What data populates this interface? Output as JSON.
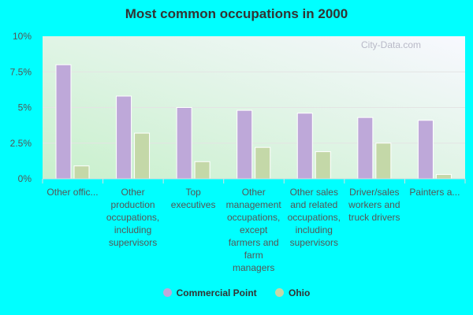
{
  "chart_data": {
    "type": "bar",
    "title": "Most common occupations in 2000",
    "categories": [
      "Other offic...",
      "Other production occupations, including supervisors",
      "Top executives",
      "Other management occupations, except farmers and farm managers",
      "Other sales and related occupations, including supervisors",
      "Driver/sales workers and truck drivers",
      "Painters a..."
    ],
    "series": [
      {
        "name": "Commercial Point",
        "color": "#bea8d9",
        "values": [
          8.0,
          5.8,
          5.0,
          4.8,
          4.6,
          4.3,
          4.1
        ]
      },
      {
        "name": "Ohio",
        "color": "#c4d8a8",
        "values": [
          0.9,
          3.2,
          1.2,
          2.2,
          1.9,
          2.5,
          0.3
        ]
      }
    ],
    "yticks": [
      "0%",
      "2.5%",
      "5%",
      "7.5%",
      "10%"
    ],
    "ylim": [
      0,
      10
    ],
    "grid": true,
    "legend": "bottom"
  },
  "watermark": "City-Data.com"
}
